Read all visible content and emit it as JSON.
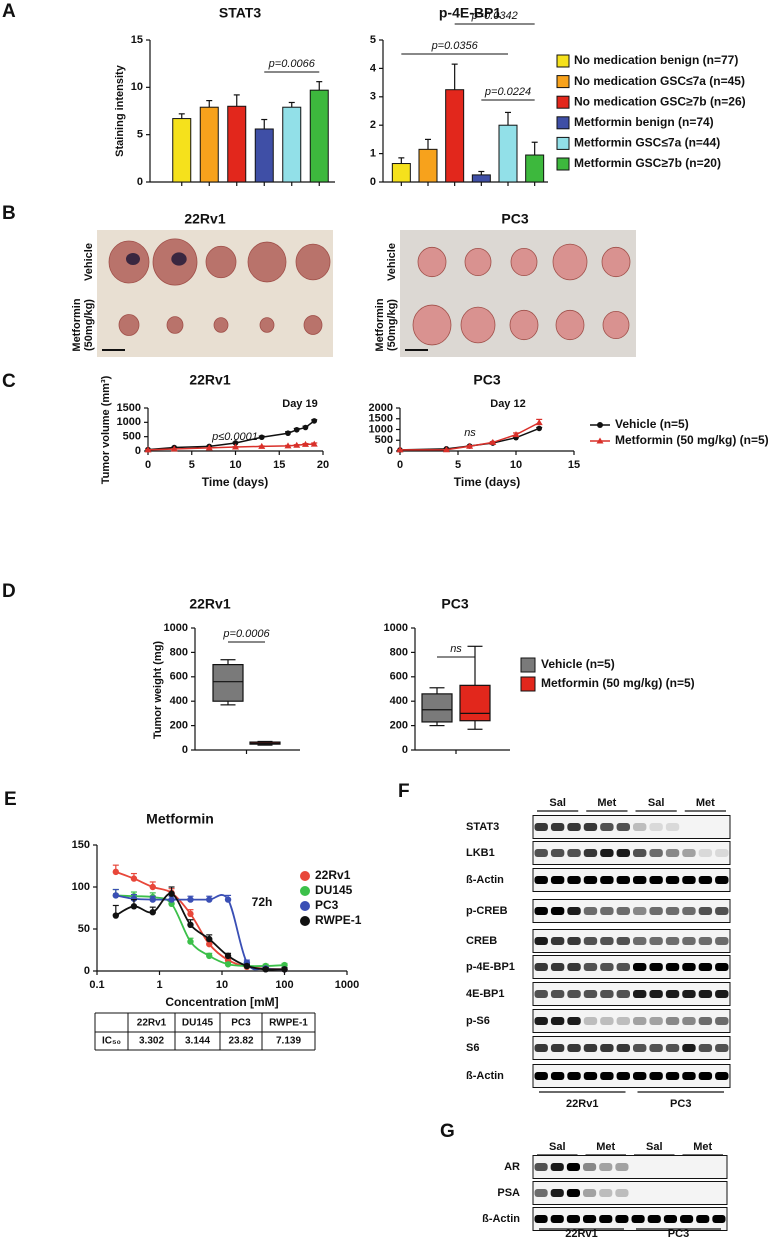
{
  "panel_labels": [
    "A",
    "B",
    "C",
    "D",
    "E",
    "F",
    "G"
  ],
  "chart_data": [
    {
      "type": "bar",
      "title": "STAT3",
      "y_label": "Staining intensity",
      "values": [
        6.7,
        7.9,
        8.0,
        5.6,
        7.9,
        9.7
      ],
      "errors": [
        0.5,
        0.7,
        1.2,
        1.0,
        0.5,
        0.9
      ],
      "colors": [
        "#f5e11c",
        "#f7a21c",
        "#e2271c",
        "#3f4fa6",
        "#92e0e8",
        "#3db83d"
      ],
      "ylim": [
        0,
        15
      ],
      "yticks": [
        0,
        5,
        10,
        15
      ],
      "annotations": [
        "p=0.0066"
      ]
    },
    {
      "type": "bar",
      "title": "p-4E-BP1",
      "values": [
        0.65,
        1.15,
        3.25,
        0.25,
        2.0,
        0.95
      ],
      "errors": [
        0.2,
        0.35,
        0.9,
        0.12,
        0.45,
        0.45
      ],
      "colors": [
        "#f5e11c",
        "#f7a21c",
        "#e2271c",
        "#3f4fa6",
        "#92e0e8",
        "#3db83d"
      ],
      "ylim": [
        0,
        5
      ],
      "yticks": [
        0,
        1,
        2,
        3,
        4,
        5
      ],
      "annotations": [
        "p=0.0342",
        "p=0.0356",
        "p=0.0224"
      ],
      "legend": [
        {
          "name": "No medication benign (n=77)",
          "color": "#f5e11c"
        },
        {
          "name": "No medication GSC≤7a (n=45)",
          "color": "#f7a21c"
        },
        {
          "name": "No medication GSC≥7b (n=26)",
          "color": "#e2271c"
        },
        {
          "name": "Metformin benign (n=74)",
          "color": "#3f4fa6"
        },
        {
          "name": "Metformin GSC≤7a (n=44)",
          "color": "#92e0e8"
        },
        {
          "name": "Metformin GSC≥7b (n=20)",
          "color": "#3db83d"
        }
      ]
    },
    {
      "type": "line",
      "title": "22Rv1",
      "x_label": "Time (days)",
      "y_label": "Tumor volume (mm³)",
      "x": [
        0,
        3,
        7,
        10,
        13,
        16,
        17,
        18,
        19
      ],
      "series": [
        {
          "color": "#111111",
          "values": [
            50,
            120,
            160,
            280,
            480,
            620,
            740,
            820,
            1050
          ],
          "errors": [
            10,
            15,
            15,
            25,
            40,
            50,
            45,
            45,
            40
          ]
        },
        {
          "color": "#d9302a",
          "values": [
            40,
            70,
            110,
            140,
            160,
            180,
            200,
            230,
            240
          ],
          "errors": [
            10,
            10,
            10,
            10,
            15,
            15,
            20,
            30,
            40
          ]
        }
      ],
      "xlim": [
        0,
        20
      ],
      "xticks": [
        0,
        5,
        10,
        15,
        20
      ],
      "ylim": [
        0,
        1500
      ],
      "yticks": [
        0,
        500,
        1000,
        1500
      ],
      "annotations": [
        "Day 19",
        "p≤0.0001"
      ]
    },
    {
      "type": "line",
      "title": "PC3",
      "x_label": "Time (days)",
      "x": [
        0,
        4,
        6,
        8,
        10,
        12
      ],
      "series": [
        {
          "name": "Vehicle (n=5)",
          "color": "#111111",
          "values": [
            50,
            100,
            230,
            370,
            620,
            1050
          ],
          "errors": [
            10,
            15,
            20,
            30,
            45,
            45
          ]
        },
        {
          "name": "Metformin (50 mg/kg) (n=5)",
          "color": "#d9302a",
          "values": [
            50,
            60,
            220,
            400,
            760,
            1320
          ],
          "errors": [
            10,
            10,
            25,
            35,
            80,
            150
          ]
        }
      ],
      "xlim": [
        0,
        15
      ],
      "xticks": [
        0,
        5,
        10,
        15
      ],
      "ylim": [
        0,
        2000
      ],
      "yticks": [
        0,
        500,
        1000,
        1500,
        2000
      ],
      "annotations": [
        "Day 12",
        "ns"
      ]
    },
    {
      "type": "box",
      "title": "22Rv1",
      "y_label": "Tumor weight (mg)",
      "series": [
        {
          "color": "#7a7a7a",
          "min": 370,
          "q1": 400,
          "median": 560,
          "q3": 700,
          "max": 740
        },
        {
          "color": "#e2271c",
          "min": 40,
          "q1": 48,
          "median": 55,
          "q3": 65,
          "max": 70
        }
      ],
      "ylim": [
        0,
        1000
      ],
      "yticks": [
        0,
        200,
        400,
        600,
        800,
        1000
      ],
      "annotations": [
        "p=0.0006"
      ]
    },
    {
      "type": "box",
      "title": "PC3",
      "series": [
        {
          "name": "Vehicle (n=5)",
          "color": "#7a7a7a",
          "min": 200,
          "q1": 230,
          "median": 330,
          "q3": 460,
          "max": 510
        },
        {
          "name": "Metformin (50 mg/kg) (n=5)",
          "color": "#e2271c",
          "min": 170,
          "q1": 240,
          "median": 300,
          "q3": 530,
          "max": 850
        }
      ],
      "ylim": [
        0,
        1000
      ],
      "yticks": [
        0,
        200,
        400,
        600,
        800,
        1000
      ],
      "annotations": [
        "ns"
      ]
    },
    {
      "type": "scatter",
      "title": "Metformin",
      "x_label": "Concentration [mM]",
      "xscale": "log",
      "x": [
        0.2,
        0.39,
        0.78,
        1.56,
        3.13,
        6.25,
        12.5,
        25,
        50,
        100
      ],
      "series": [
        {
          "name": "22Rv1",
          "color": "#e8473a",
          "values": [
            118,
            110,
            100,
            93,
            68,
            32,
            13,
            5,
            3,
            2
          ],
          "errors": [
            8,
            6,
            6,
            5,
            5,
            4,
            3,
            2,
            2,
            2
          ]
        },
        {
          "name": "DU145",
          "color": "#3cc04a",
          "values": [
            90,
            89,
            88,
            80,
            35,
            18,
            8,
            6,
            6,
            7
          ],
          "errors": [
            7,
            5,
            5,
            5,
            4,
            3,
            2,
            2,
            2,
            2
          ]
        },
        {
          "name": "PC3",
          "color": "#3a4fb5",
          "values": [
            90,
            86,
            85,
            85,
            85,
            85,
            85,
            10,
            3,
            2
          ],
          "errors": [
            7,
            5,
            4,
            4,
            4,
            4,
            5,
            3,
            2,
            2
          ]
        },
        {
          "name": "RWPE-1",
          "color": "#111111",
          "values": [
            66,
            77,
            70,
            92,
            55,
            38,
            18,
            6,
            2,
            2
          ],
          "errors": [
            12,
            8,
            6,
            8,
            6,
            5,
            3,
            2,
            2,
            2
          ]
        }
      ],
      "xlim": [
        0.1,
        1000
      ],
      "xticks": [
        0.1,
        1,
        10,
        100,
        1000
      ],
      "ylim": [
        0,
        150
      ],
      "yticks": [
        0,
        50,
        100,
        150
      ],
      "annotations": [
        "72h"
      ]
    }
  ],
  "table": {
    "columns": [
      "22Rv1",
      "DU145",
      "PC3",
      "RWPE-1"
    ],
    "rows": [
      {
        "label": "IC₅₀",
        "values": [
          3.302,
          3.144,
          23.82,
          7.139
        ]
      }
    ]
  },
  "photos": [
    {
      "title": "22Rv1",
      "rows": [
        [
          "Vehicle"
        ],
        [
          "Metformin",
          "(50mg/kg)"
        ]
      ]
    },
    {
      "title": "PC3",
      "rows": [
        [
          "Vehicle"
        ],
        [
          "Metformin",
          "(50mg/kg)"
        ]
      ]
    }
  ],
  "blots": [
    {
      "columns": [
        "Sal",
        "Met",
        "Sal",
        "Met"
      ],
      "rows": [
        "STAT3",
        "LKB1",
        "ß-Actin",
        "p-CREB",
        "CREB",
        "p-4E-BP1",
        "4E-BP1",
        "p-S6",
        "S6",
        "ß-Actin"
      ],
      "groups": [
        "22Rv1",
        "PC3"
      ]
    },
    {
      "columns": [
        "Sal",
        "Met",
        "Sal",
        "Met"
      ],
      "rows": [
        "AR",
        "PSA",
        "ß-Actin"
      ],
      "groups": [
        "22Rv1",
        "PC3"
      ]
    }
  ]
}
